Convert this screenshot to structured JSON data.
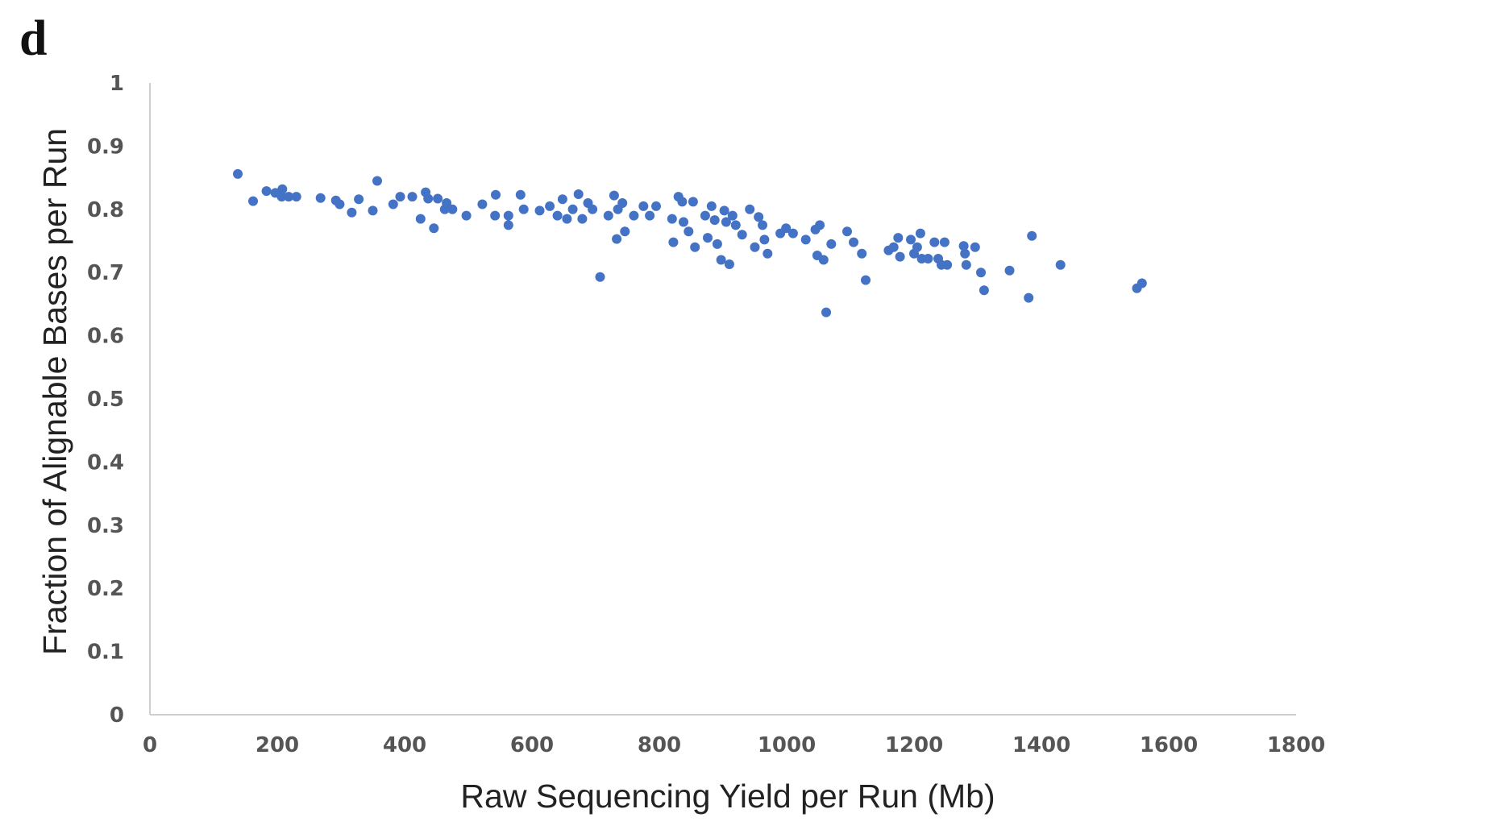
{
  "panel_label": "d",
  "chart_data": {
    "type": "scatter",
    "title": "",
    "xlabel": "Raw Sequencing Yield per Run (Mb)",
    "ylabel": "Fraction of Alignable Bases per Run",
    "xlim": [
      0,
      1800
    ],
    "ylim": [
      0,
      1
    ],
    "x_ticks": [
      "0",
      "200",
      "400",
      "600",
      "800",
      "1000",
      "1200",
      "1400",
      "1600",
      "1800"
    ],
    "y_ticks": [
      "0",
      "0.1",
      "0.2",
      "0.3",
      "0.4",
      "0.5",
      "0.6",
      "0.7",
      "0.8",
      "0.9",
      "1"
    ],
    "grid": false,
    "legend": "none",
    "color": "#4472c4",
    "points": [
      [
        138,
        0.856
      ],
      [
        162,
        0.813
      ],
      [
        183,
        0.829
      ],
      [
        197,
        0.826
      ],
      [
        208,
        0.832
      ],
      [
        207,
        0.82
      ],
      [
        218,
        0.82
      ],
      [
        230,
        0.82
      ],
      [
        268,
        0.818
      ],
      [
        292,
        0.814
      ],
      [
        298,
        0.808
      ],
      [
        317,
        0.795
      ],
      [
        328,
        0.816
      ],
      [
        350,
        0.798
      ],
      [
        357,
        0.845
      ],
      [
        382,
        0.808
      ],
      [
        393,
        0.82
      ],
      [
        412,
        0.82
      ],
      [
        425,
        0.785
      ],
      [
        433,
        0.827
      ],
      [
        437,
        0.817
      ],
      [
        446,
        0.77
      ],
      [
        452,
        0.817
      ],
      [
        463,
        0.8
      ],
      [
        466,
        0.81
      ],
      [
        475,
        0.8
      ],
      [
        497,
        0.79
      ],
      [
        522,
        0.808
      ],
      [
        542,
        0.79
      ],
      [
        543,
        0.823
      ],
      [
        563,
        0.775
      ],
      [
        563,
        0.79
      ],
      [
        582,
        0.823
      ],
      [
        587,
        0.8
      ],
      [
        612,
        0.798
      ],
      [
        628,
        0.805
      ],
      [
        640,
        0.79
      ],
      [
        648,
        0.816
      ],
      [
        655,
        0.785
      ],
      [
        664,
        0.8
      ],
      [
        673,
        0.824
      ],
      [
        679,
        0.785
      ],
      [
        688,
        0.81
      ],
      [
        695,
        0.8
      ],
      [
        707,
        0.693
      ],
      [
        720,
        0.79
      ],
      [
        729,
        0.822
      ],
      [
        733,
        0.753
      ],
      [
        735,
        0.8
      ],
      [
        742,
        0.81
      ],
      [
        746,
        0.765
      ],
      [
        760,
        0.79
      ],
      [
        775,
        0.805
      ],
      [
        785,
        0.79
      ],
      [
        795,
        0.805
      ],
      [
        820,
        0.785
      ],
      [
        822,
        0.748
      ],
      [
        830,
        0.82
      ],
      [
        836,
        0.812
      ],
      [
        838,
        0.78
      ],
      [
        846,
        0.765
      ],
      [
        853,
        0.812
      ],
      [
        856,
        0.74
      ],
      [
        872,
        0.79
      ],
      [
        876,
        0.755
      ],
      [
        882,
        0.805
      ],
      [
        887,
        0.783
      ],
      [
        891,
        0.745
      ],
      [
        897,
        0.72
      ],
      [
        902,
        0.798
      ],
      [
        905,
        0.78
      ],
      [
        910,
        0.713
      ],
      [
        915,
        0.79
      ],
      [
        920,
        0.775
      ],
      [
        930,
        0.76
      ],
      [
        942,
        0.8
      ],
      [
        950,
        0.74
      ],
      [
        956,
        0.788
      ],
      [
        962,
        0.775
      ],
      [
        965,
        0.752
      ],
      [
        970,
        0.73
      ],
      [
        990,
        0.762
      ],
      [
        999,
        0.77
      ],
      [
        1010,
        0.762
      ],
      [
        1030,
        0.752
      ],
      [
        1045,
        0.768
      ],
      [
        1048,
        0.727
      ],
      [
        1052,
        0.775
      ],
      [
        1058,
        0.72
      ],
      [
        1062,
        0.637
      ],
      [
        1070,
        0.745
      ],
      [
        1095,
        0.765
      ],
      [
        1105,
        0.748
      ],
      [
        1118,
        0.73
      ],
      [
        1124,
        0.688
      ],
      [
        1160,
        0.735
      ],
      [
        1168,
        0.74
      ],
      [
        1175,
        0.755
      ],
      [
        1178,
        0.725
      ],
      [
        1195,
        0.752
      ],
      [
        1200,
        0.73
      ],
      [
        1205,
        0.74
      ],
      [
        1210,
        0.762
      ],
      [
        1212,
        0.722
      ],
      [
        1222,
        0.722
      ],
      [
        1232,
        0.748
      ],
      [
        1238,
        0.722
      ],
      [
        1243,
        0.712
      ],
      [
        1248,
        0.748
      ],
      [
        1252,
        0.712
      ],
      [
        1278,
        0.742
      ],
      [
        1280,
        0.73
      ],
      [
        1282,
        0.712
      ],
      [
        1296,
        0.74
      ],
      [
        1305,
        0.7
      ],
      [
        1310,
        0.672
      ],
      [
        1350,
        0.703
      ],
      [
        1380,
        0.66
      ],
      [
        1385,
        0.758
      ],
      [
        1430,
        0.712
      ],
      [
        1550,
        0.675
      ],
      [
        1558,
        0.683
      ]
    ]
  }
}
